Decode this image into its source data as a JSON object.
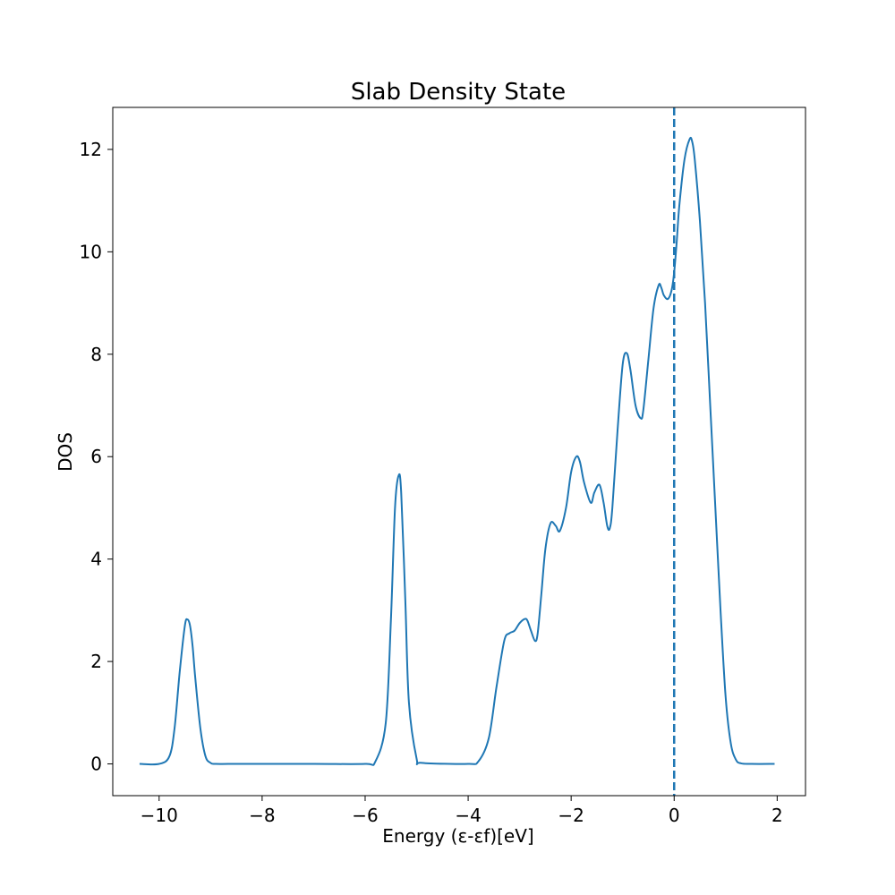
{
  "chart_data": {
    "type": "line",
    "title": "Slab Density State",
    "xlabel": "Energy (ε-εf)[eV]",
    "ylabel": "DOS",
    "xlim": [
      -10.9,
      2.55
    ],
    "ylim": [
      -0.62,
      12.82
    ],
    "xticks": [
      -10,
      -8,
      -6,
      -4,
      -2,
      0,
      2
    ],
    "yticks": [
      0,
      2,
      4,
      6,
      8,
      10,
      12
    ],
    "xtick_labels": [
      "−10",
      "−8",
      "−6",
      "−4",
      "−2",
      "0",
      "2"
    ],
    "ytick_labels": [
      "0",
      "2",
      "4",
      "6",
      "8",
      "10",
      "12"
    ],
    "grid": false,
    "line_color": "#1f77b4",
    "fermi_level": {
      "x": 0,
      "style": "dashed",
      "color": "#1f77b4"
    },
    "series": [
      {
        "x": [
          -10.38,
          -10.0,
          -9.8,
          -9.7,
          -9.6,
          -9.5,
          -9.45,
          -9.4,
          -9.35,
          -9.3,
          -9.2,
          -9.1,
          -9.0,
          -8.9,
          -8.5,
          -7.0,
          -6.0,
          -5.8,
          -5.6,
          -5.5,
          -5.42,
          -5.35,
          -5.3,
          -5.22,
          -5.15,
          -5.0,
          -4.9,
          -4.0,
          -3.8,
          -3.6,
          -3.45,
          -3.3,
          -3.2,
          -3.1,
          -3.0,
          -2.9,
          -2.85,
          -2.78,
          -2.7,
          -2.65,
          -2.58,
          -2.5,
          -2.4,
          -2.3,
          -2.22,
          -2.1,
          -2.0,
          -1.9,
          -1.83,
          -1.75,
          -1.62,
          -1.55,
          -1.45,
          -1.37,
          -1.3,
          -1.25,
          -1.2,
          -1.1,
          -1.0,
          -0.92,
          -0.85,
          -0.75,
          -0.65,
          -0.6,
          -0.5,
          -0.4,
          -0.3,
          -0.25,
          -0.2,
          -0.12,
          -0.05,
          0.0,
          0.05,
          0.1,
          0.2,
          0.3,
          0.35,
          0.4,
          0.5,
          0.6,
          0.7,
          0.8,
          0.9,
          1.0,
          1.1,
          1.2,
          1.3,
          1.5,
          1.95
        ],
        "values": [
          0.0,
          0.0,
          0.15,
          0.7,
          1.8,
          2.7,
          2.82,
          2.7,
          2.3,
          1.7,
          0.7,
          0.15,
          0.02,
          0.0,
          0.0,
          0.0,
          0.0,
          0.05,
          0.8,
          2.8,
          5.0,
          5.63,
          5.3,
          3.2,
          1.2,
          0.1,
          0.02,
          0.0,
          0.05,
          0.5,
          1.5,
          2.4,
          2.55,
          2.6,
          2.75,
          2.83,
          2.8,
          2.6,
          2.4,
          2.55,
          3.3,
          4.2,
          4.7,
          4.65,
          4.55,
          5.0,
          5.7,
          6.0,
          5.9,
          5.5,
          5.1,
          5.3,
          5.45,
          5.1,
          4.65,
          4.6,
          5.0,
          6.5,
          7.8,
          8.02,
          7.7,
          7.0,
          6.75,
          6.9,
          7.9,
          8.9,
          9.35,
          9.3,
          9.15,
          9.08,
          9.25,
          9.6,
          10.2,
          10.9,
          11.8,
          12.2,
          12.15,
          11.8,
          10.6,
          9.0,
          7.0,
          5.0,
          3.0,
          1.3,
          0.4,
          0.08,
          0.01,
          0.0,
          0.0
        ]
      }
    ]
  }
}
